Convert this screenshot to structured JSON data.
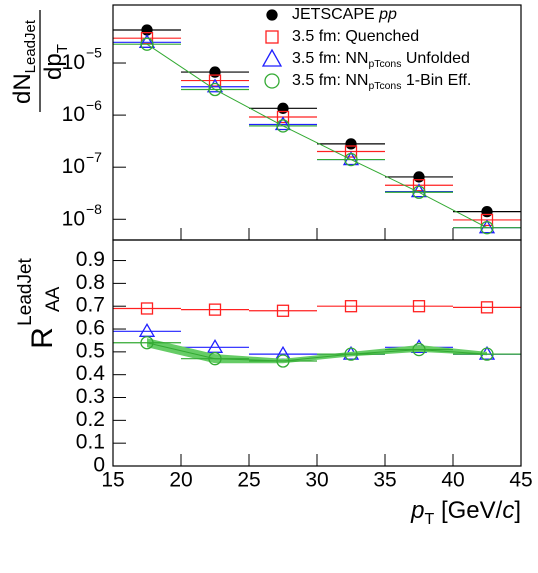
{
  "chart_data": [
    {
      "type": "scatter",
      "log_y": true,
      "y_label": {
        "numerator": "dN",
        "numerator_sub": "LeadJet",
        "denominator": "dp",
        "denominator_sub": "T"
      },
      "x": [
        17.5,
        22.5,
        27.5,
        32.5,
        37.5,
        42.5
      ],
      "xerr": [
        2.5,
        2.5,
        2.5,
        2.5,
        2.5,
        2.5
      ],
      "xlim": [
        15,
        45
      ],
      "xticks": [
        15,
        20,
        25,
        30,
        35,
        40,
        45
      ],
      "ylim": [
        4e-09,
        0.00013
      ],
      "yticks": [
        {
          "value": 1e-08,
          "label": "10",
          "exponent": "−8"
        },
        {
          "value": 1e-07,
          "label": "10",
          "exponent": "−7"
        },
        {
          "value": 1e-06,
          "label": "10",
          "exponent": "−6"
        },
        {
          "value": 1e-05,
          "label": "10",
          "exponent": "−5"
        }
      ],
      "series": [
        {
          "name": [
            "JETSCAPE ",
            "pp"
          ],
          "name_style": [
            "",
            "italic"
          ],
          "marker": "filled-circle",
          "color": "#000000",
          "values": [
            4.3e-05,
            6.7e-06,
            1.35e-06,
            2.8e-07,
            6.5e-08,
            1.4e-08
          ]
        },
        {
          "name": [
            "3.5 fm: Quenched"
          ],
          "name_style": [
            ""
          ],
          "marker": "open-square",
          "color": "#ff2020",
          "values": [
            3e-05,
            4.6e-06,
            9.2e-07,
            2e-07,
            4.5e-08,
            9.7e-09
          ]
        },
        {
          "name": [
            "3.5 fm: NN",
            "pTcons",
            " Unfolded"
          ],
          "name_style": [
            "",
            "sub",
            ""
          ],
          "marker": "open-triangle",
          "color": "#2020ff",
          "values": [
            2.5e-05,
            3.5e-06,
            6.6e-07,
            1.4e-07,
            3.4e-08,
            6.9e-09
          ]
        },
        {
          "name": [
            "3.5 fm: NN",
            "pTcons",
            " 1-Bin Eff."
          ],
          "name_style": [
            "",
            "sub",
            ""
          ],
          "marker": "open-circle",
          "color": "#33aa33",
          "line": true,
          "values": [
            2.3e-05,
            3.1e-06,
            6.2e-07,
            1.4e-07,
            3.3e-08,
            6.9e-09
          ]
        }
      ]
    },
    {
      "type": "scatter",
      "log_y": false,
      "y_label": {
        "main": "R",
        "sub": "AA",
        "sup": "LeadJet"
      },
      "x_label": [
        "p",
        "T",
        " [GeV/",
        "c",
        "]"
      ],
      "x_label_style": [
        "italic",
        "sub",
        "",
        "italic",
        ""
      ],
      "x": [
        17.5,
        22.5,
        27.5,
        32.5,
        37.5,
        42.5
      ],
      "xerr": [
        2.5,
        2.5,
        2.5,
        2.5,
        2.5,
        2.5
      ],
      "xlim": [
        15,
        45
      ],
      "xticks": [
        15,
        20,
        25,
        30,
        35,
        40,
        45
      ],
      "ylim": [
        0,
        0.99
      ],
      "yticks": [
        0,
        0.1,
        0.2,
        0.3,
        0.4,
        0.5,
        0.6,
        0.7,
        0.8,
        0.9
      ],
      "series": [
        {
          "marker": "open-square",
          "color": "#ff2020",
          "values": [
            0.69,
            0.685,
            0.68,
            0.7,
            0.7,
            0.695
          ]
        },
        {
          "marker": "open-triangle",
          "color": "#2020ff",
          "values": [
            0.59,
            0.52,
            0.49,
            0.49,
            0.52,
            0.49
          ]
        },
        {
          "marker": "open-circle",
          "color": "#33aa33",
          "line": true,
          "values": [
            0.54,
            0.47,
            0.46,
            0.49,
            0.51,
            0.49
          ],
          "band": {
            "color": "#66cc66",
            "lower": [
              0.52,
              0.45,
              0.45,
              0.48,
              0.5,
              0.485
            ],
            "upper": [
              0.56,
              0.49,
              0.47,
              0.5,
              0.53,
              0.5
            ]
          }
        }
      ]
    }
  ]
}
